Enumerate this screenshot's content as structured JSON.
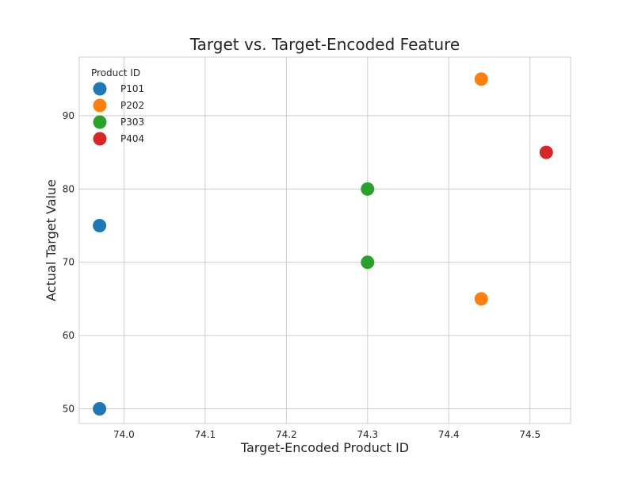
{
  "chart_data": {
    "type": "scatter",
    "title": "Target vs. Target-Encoded Feature",
    "xlabel": "Target-Encoded Product ID",
    "ylabel": "Actual Target Value",
    "xlim": [
      73.945,
      74.55
    ],
    "ylim": [
      48,
      98
    ],
    "xticks": [
      74.0,
      74.1,
      74.2,
      74.3,
      74.4,
      74.5
    ],
    "xtick_labels": [
      "74.0",
      "74.1",
      "74.2",
      "74.3",
      "74.4",
      "74.5"
    ],
    "yticks": [
      50,
      60,
      70,
      80,
      90
    ],
    "ytick_labels": [
      "50",
      "60",
      "70",
      "80",
      "90"
    ],
    "grid": true,
    "legend": {
      "title": "Product ID",
      "placement": "top-left"
    },
    "series": [
      {
        "name": "P101",
        "color": "#1f77b4",
        "points": [
          {
            "x": 73.97,
            "y": 75
          },
          {
            "x": 73.97,
            "y": 50
          }
        ]
      },
      {
        "name": "P202",
        "color": "#ff7f0e",
        "points": [
          {
            "x": 74.44,
            "y": 95
          },
          {
            "x": 74.44,
            "y": 65
          }
        ]
      },
      {
        "name": "P303",
        "color": "#2ca02c",
        "points": [
          {
            "x": 74.3,
            "y": 80
          },
          {
            "x": 74.3,
            "y": 70
          }
        ]
      },
      {
        "name": "P404",
        "color": "#d62728",
        "points": [
          {
            "x": 74.52,
            "y": 85
          }
        ]
      }
    ]
  }
}
